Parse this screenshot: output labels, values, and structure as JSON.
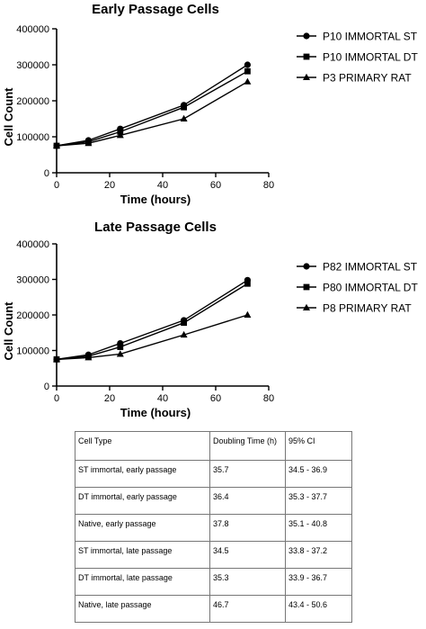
{
  "chart_data": [
    {
      "type": "line",
      "title": "Early Passage Cells",
      "xlabel": "Time (hours)",
      "ylabel": "Cell  Count",
      "xlim": [
        0,
        80
      ],
      "ylim": [
        0,
        400000
      ],
      "xticks": [
        "0",
        "20",
        "40",
        "60",
        "80"
      ],
      "yticks": [
        "0",
        "100000",
        "200000",
        "300000",
        "400000"
      ],
      "legend_position": "right",
      "x": [
        0,
        12,
        24,
        48,
        72
      ],
      "series": [
        {
          "name": "P10 IMMORTAL ST",
          "marker": "circle",
          "values": [
            75000,
            90000,
            122000,
            188000,
            300000
          ]
        },
        {
          "name": "P10 IMMORTAL DT",
          "marker": "square",
          "values": [
            75000,
            86000,
            114000,
            182000,
            282000
          ]
        },
        {
          "name": "P3 PRIMARY RAT",
          "marker": "triangle",
          "values": [
            75000,
            82000,
            104000,
            150000,
            253000
          ]
        }
      ]
    },
    {
      "type": "line",
      "title": "Late Passage Cells",
      "xlabel": "Time (hours)",
      "ylabel": "Cell  Count",
      "xlim": [
        0,
        80
      ],
      "ylim": [
        0,
        400000
      ],
      "xticks": [
        "0",
        "20",
        "40",
        "60",
        "80"
      ],
      "yticks": [
        "0",
        "100000",
        "200000",
        "300000",
        "400000"
      ],
      "legend_position": "right",
      "x": [
        0,
        12,
        24,
        48,
        72
      ],
      "series": [
        {
          "name": "P82 IMMORTAL ST",
          "marker": "circle",
          "values": [
            75000,
            88000,
            120000,
            185000,
            298000
          ]
        },
        {
          "name": "P80 IMMORTAL DT",
          "marker": "square",
          "values": [
            75000,
            84000,
            110000,
            178000,
            288000
          ]
        },
        {
          "name": "P8 PRIMARY RAT",
          "marker": "triangle",
          "values": [
            75000,
            80000,
            90000,
            144000,
            200000
          ]
        }
      ]
    }
  ],
  "table": {
    "headers": [
      "Cell Type",
      "Doubling Time (h)",
      "95% CI"
    ],
    "rows": [
      [
        "ST immortal, early passage",
        "35.7",
        "34.5 - 36.9"
      ],
      [
        "DT immortal, early passage",
        "36.4",
        "35.3 - 37.7"
      ],
      [
        "Native, early passage",
        "37.8",
        "35.1 - 40.8"
      ],
      [
        "ST immortal, late passage",
        "34.5",
        "33.8 - 37.2"
      ],
      [
        "DT immortal, late passage",
        "35.3",
        "33.9 - 36.7"
      ],
      [
        "Native, late passage",
        "46.7",
        "43.4 - 50.6"
      ]
    ]
  },
  "colors": {
    "line": "#000000",
    "grid_border": "#777777"
  }
}
